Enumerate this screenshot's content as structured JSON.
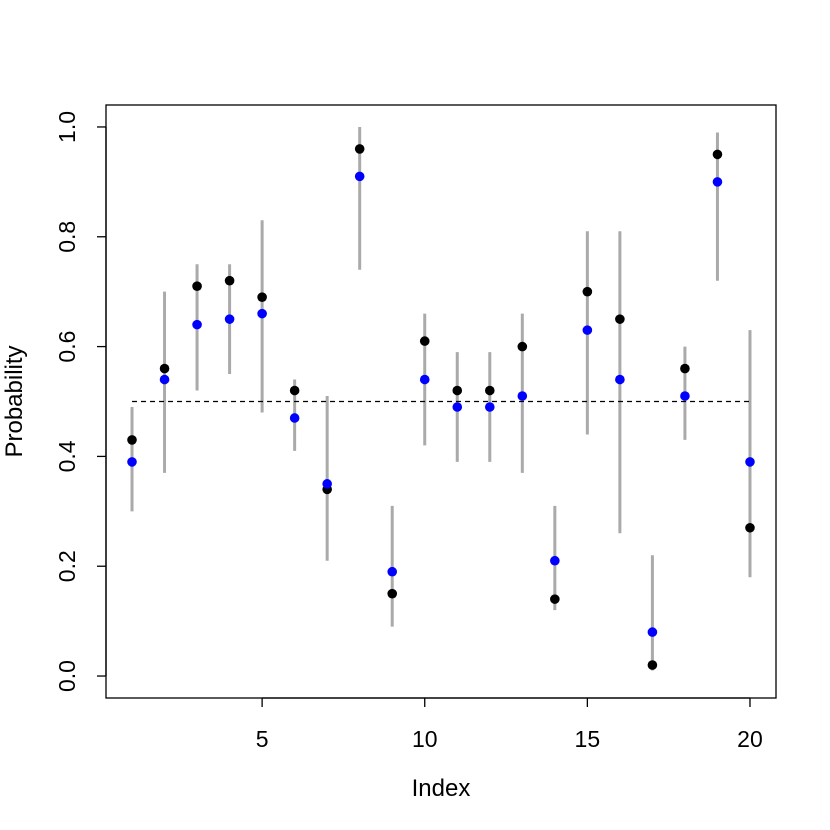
{
  "chart_data": {
    "type": "scatter",
    "title": "",
    "xlabel": "Index",
    "ylabel": "Probability",
    "xlim": [
      0.2,
      20.8
    ],
    "ylim": [
      -0.04,
      1.04
    ],
    "x_ticks": [
      5,
      10,
      15,
      20
    ],
    "x_tick_labels": [
      "5",
      "10",
      "15",
      "20"
    ],
    "y_ticks": [
      0.0,
      0.2,
      0.4,
      0.6,
      0.8,
      1.0
    ],
    "y_tick_labels": [
      "0.0",
      "0.2",
      "0.4",
      "0.6",
      "0.8",
      "1.0"
    ],
    "grid": false,
    "legend": "none",
    "reference_line": {
      "y": 0.5,
      "x_from": 1,
      "x_to": 20,
      "style": "dashed",
      "color": "#000000"
    },
    "x": [
      1,
      2,
      3,
      4,
      5,
      6,
      7,
      8,
      9,
      10,
      11,
      12,
      13,
      14,
      15,
      16,
      17,
      18,
      19,
      20
    ],
    "intervals": {
      "color": "#aaaaaa",
      "lower": [
        0.3,
        0.37,
        0.52,
        0.55,
        0.48,
        0.41,
        0.21,
        0.74,
        0.09,
        0.42,
        0.39,
        0.39,
        0.37,
        0.12,
        0.44,
        0.26,
        0.01,
        0.43,
        0.72,
        0.18
      ],
      "upper": [
        0.49,
        0.7,
        0.75,
        0.75,
        0.83,
        0.54,
        0.51,
        1.0,
        0.31,
        0.66,
        0.59,
        0.59,
        0.66,
        0.31,
        0.81,
        0.81,
        0.22,
        0.6,
        0.99,
        0.63
      ]
    },
    "series": [
      {
        "color": "#000000",
        "values": [
          0.43,
          0.56,
          0.71,
          0.72,
          0.69,
          0.52,
          0.34,
          0.96,
          0.15,
          0.61,
          0.52,
          0.52,
          0.6,
          0.14,
          0.7,
          0.65,
          0.02,
          0.56,
          0.95,
          0.27
        ]
      },
      {
        "color": "#0000ff",
        "values": [
          0.39,
          0.54,
          0.64,
          0.65,
          0.66,
          0.47,
          0.35,
          0.91,
          0.19,
          0.54,
          0.49,
          0.49,
          0.51,
          0.21,
          0.63,
          0.54,
          0.08,
          0.51,
          0.9,
          0.39
        ]
      }
    ]
  }
}
